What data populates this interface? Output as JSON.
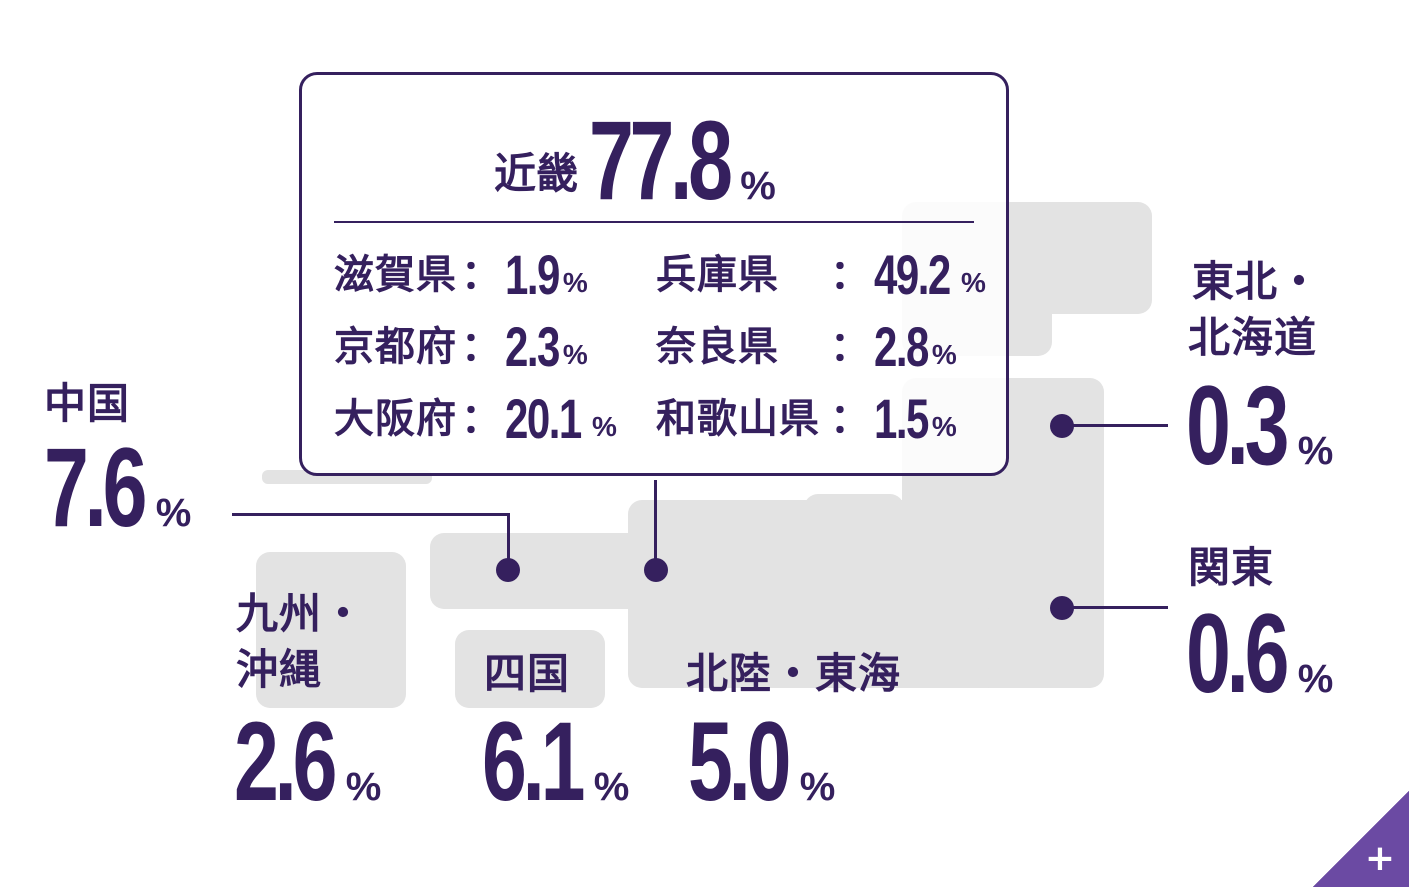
{
  "pct_unit": "%",
  "colon": "：",
  "colors": {
    "accent": "#35205e",
    "map_fill": "#e3e3e3",
    "corner": "#6b4aa3"
  },
  "kinki": {
    "label": "近畿",
    "value": "77.8",
    "prefectures": [
      {
        "name": "滋賀県",
        "value": "1.9"
      },
      {
        "name": "京都府",
        "value": "2.3"
      },
      {
        "name": "大阪府",
        "value": "20.1"
      },
      {
        "name": "兵庫県",
        "value": "49.2"
      },
      {
        "name": "奈良県",
        "value": "2.8"
      },
      {
        "name": "和歌山県",
        "value": "1.5"
      }
    ]
  },
  "regions": {
    "chugoku": {
      "label": "中国",
      "value": "7.6"
    },
    "kyushu": {
      "label_line1": "九州・",
      "label_line2": "沖縄",
      "value": "2.6"
    },
    "shikoku": {
      "label": "四国",
      "value": "6.1"
    },
    "hokuriku_tokai": {
      "label": "北陸・東海",
      "value": "5.0"
    },
    "tohoku": {
      "label_line1": "東北・",
      "label_line2": "北海道",
      "value": "0.3"
    },
    "kanto": {
      "label": "関東",
      "value": "0.6"
    }
  },
  "corner_button": {
    "icon": "plus-icon",
    "glyph": "+"
  }
}
